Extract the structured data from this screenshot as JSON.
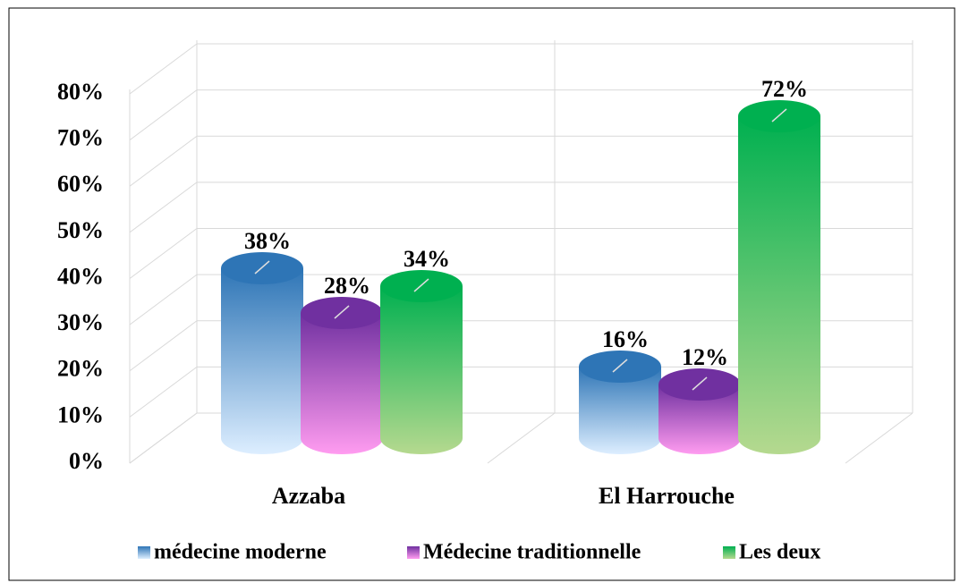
{
  "chart_data": {
    "type": "bar",
    "categories": [
      "Azzaba",
      "El Harrouche"
    ],
    "series": [
      {
        "name": "médecine moderne",
        "color": "#2e75b6",
        "values": [
          38,
          16
        ],
        "value_labels": [
          "38%",
          "16%"
        ]
      },
      {
        "name": "Médecine traditionnelle",
        "color": "#7030a0",
        "values": [
          28,
          12
        ],
        "value_labels": [
          "28%",
          "12%"
        ]
      },
      {
        "name": "Les deux",
        "color": "#00b050",
        "values": [
          34,
          72
        ],
        "value_labels": [
          "34%",
          "72%"
        ]
      }
    ],
    "ylim": [
      0,
      80
    ],
    "yticks": [
      {
        "value": 0,
        "label": "0%"
      },
      {
        "value": 10,
        "label": "10%"
      },
      {
        "value": 20,
        "label": "20%"
      },
      {
        "value": 30,
        "label": "30%"
      },
      {
        "value": 40,
        "label": "40%"
      },
      {
        "value": 50,
        "label": "50%"
      },
      {
        "value": 60,
        "label": "60%"
      },
      {
        "value": 70,
        "label": "70%"
      },
      {
        "value": 80,
        "label": "80%"
      }
    ],
    "grid": true,
    "legend": "bottom"
  }
}
